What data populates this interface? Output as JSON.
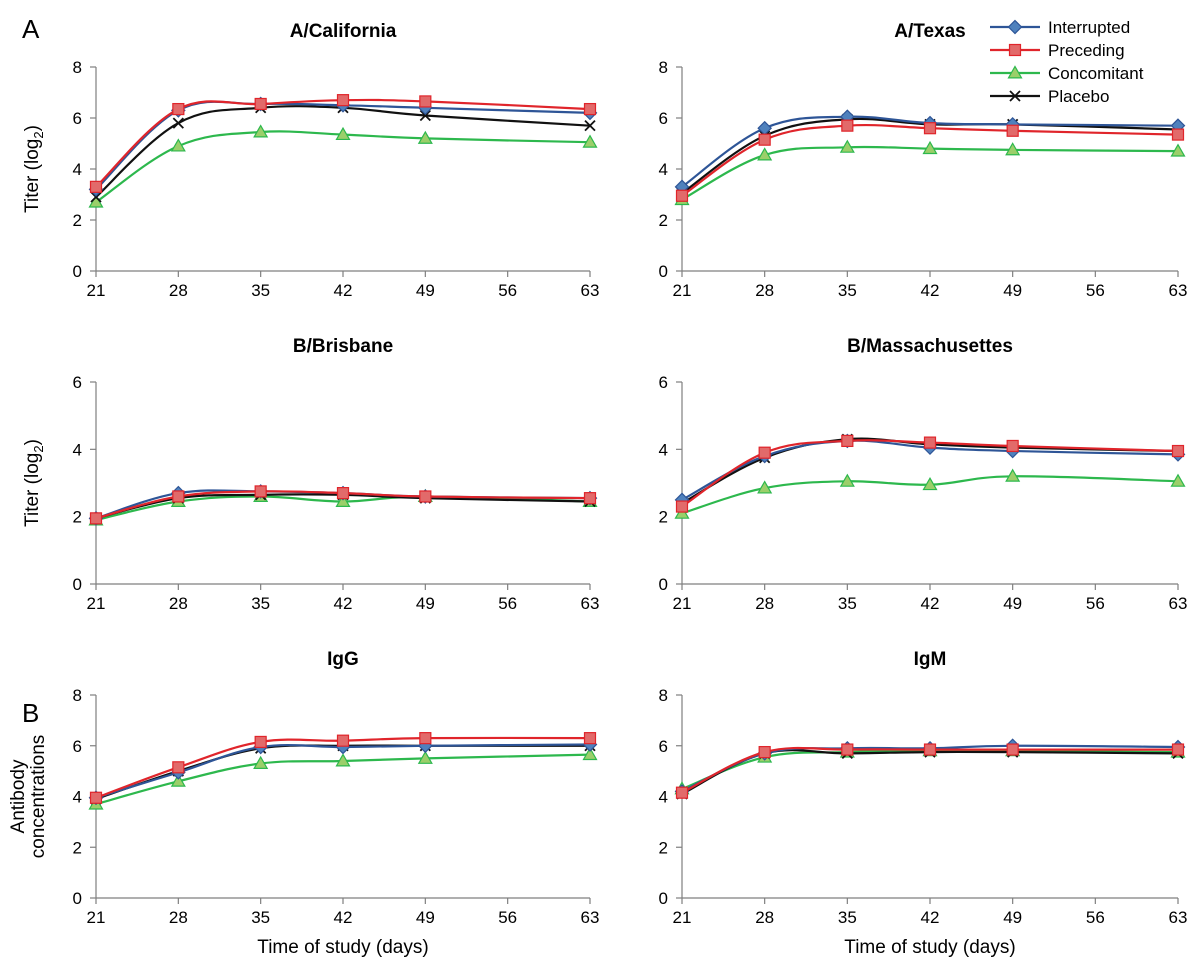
{
  "figure": {
    "panel_labels": [
      "A",
      "B"
    ],
    "legend": {
      "entries": [
        {
          "name": "Interrupted",
          "color": "#2e5597",
          "fill": "#4f81bd",
          "marker": "diamond"
        },
        {
          "name": "Preceding",
          "color": "#e0252b",
          "fill": "#e26a6a",
          "marker": "square"
        },
        {
          "name": "Concomitant",
          "color": "#2db84d",
          "fill": "#9bcf6a",
          "marker": "triangle"
        },
        {
          "name": "Placebo",
          "color": "#111111",
          "fill": "none",
          "marker": "x"
        }
      ],
      "placement": "top-right"
    }
  },
  "chart_data": [
    {
      "type": "line",
      "title": "A/California",
      "xlabel": "",
      "ylabel": "Titer (log2)",
      "xlim": [
        21,
        63
      ],
      "ylim": [
        0,
        8
      ],
      "xticks": [
        21,
        28,
        35,
        42,
        49,
        56,
        63
      ],
      "yticks": [
        0,
        2,
        4,
        6,
        8
      ],
      "x": [
        21,
        28,
        35,
        42,
        49,
        63
      ],
      "series": [
        {
          "name": "Interrupted",
          "values": [
            3.2,
            6.3,
            6.55,
            6.5,
            6.4,
            6.2
          ]
        },
        {
          "name": "Preceding",
          "values": [
            3.3,
            6.35,
            6.55,
            6.7,
            6.65,
            6.35
          ]
        },
        {
          "name": "Concomitant",
          "values": [
            2.7,
            4.9,
            5.45,
            5.35,
            5.2,
            5.05
          ]
        },
        {
          "name": "Placebo",
          "values": [
            2.9,
            5.8,
            6.4,
            6.4,
            6.1,
            5.7
          ]
        }
      ]
    },
    {
      "type": "line",
      "title": "A/Texas",
      "xlabel": "",
      "ylabel": "",
      "xlim": [
        21,
        63
      ],
      "ylim": [
        0,
        8
      ],
      "xticks": [
        21,
        28,
        35,
        42,
        49,
        56,
        63
      ],
      "yticks": [
        0,
        2,
        4,
        6,
        8
      ],
      "x": [
        21,
        28,
        35,
        42,
        49,
        63
      ],
      "series": [
        {
          "name": "Interrupted",
          "values": [
            3.3,
            5.6,
            6.05,
            5.8,
            5.75,
            5.7
          ]
        },
        {
          "name": "Preceding",
          "values": [
            2.95,
            5.15,
            5.7,
            5.6,
            5.5,
            5.35
          ]
        },
        {
          "name": "Concomitant",
          "values": [
            2.8,
            4.55,
            4.85,
            4.8,
            4.75,
            4.7
          ]
        },
        {
          "name": "Placebo",
          "values": [
            3.05,
            5.3,
            5.95,
            5.75,
            5.75,
            5.55
          ]
        }
      ]
    },
    {
      "type": "line",
      "title": "B/Brisbane",
      "xlabel": "",
      "ylabel": "Titer (log2)",
      "xlim": [
        21,
        63
      ],
      "ylim": [
        0,
        6
      ],
      "xticks": [
        21,
        28,
        35,
        42,
        49,
        56,
        63
      ],
      "yticks": [
        0,
        2,
        4,
        6
      ],
      "x": [
        21,
        28,
        35,
        42,
        49,
        63
      ],
      "series": [
        {
          "name": "Interrupted",
          "values": [
            1.95,
            2.7,
            2.75,
            2.7,
            2.6,
            2.55
          ]
        },
        {
          "name": "Preceding",
          "values": [
            1.95,
            2.6,
            2.75,
            2.7,
            2.6,
            2.55
          ]
        },
        {
          "name": "Concomitant",
          "values": [
            1.9,
            2.45,
            2.6,
            2.45,
            2.6,
            2.45
          ]
        },
        {
          "name": "Placebo",
          "values": [
            1.95,
            2.55,
            2.65,
            2.65,
            2.55,
            2.45
          ]
        }
      ]
    },
    {
      "type": "line",
      "title": "B/Massachusettes",
      "xlabel": "",
      "ylabel": "",
      "xlim": [
        21,
        63
      ],
      "ylim": [
        0,
        6
      ],
      "xticks": [
        21,
        28,
        35,
        42,
        49,
        56,
        63
      ],
      "yticks": [
        0,
        2,
        4,
        6
      ],
      "x": [
        21,
        28,
        35,
        42,
        49,
        63
      ],
      "series": [
        {
          "name": "Interrupted",
          "values": [
            2.5,
            3.8,
            4.25,
            4.05,
            3.95,
            3.85
          ]
        },
        {
          "name": "Preceding",
          "values": [
            2.3,
            3.9,
            4.25,
            4.2,
            4.1,
            3.95
          ]
        },
        {
          "name": "Concomitant",
          "values": [
            2.1,
            2.85,
            3.05,
            2.95,
            3.2,
            3.05
          ]
        },
        {
          "name": "Placebo",
          "values": [
            2.4,
            3.75,
            4.3,
            4.15,
            4.05,
            3.95
          ]
        }
      ]
    },
    {
      "type": "line",
      "title": "IgG",
      "xlabel": "Time of study (days)",
      "ylabel": "Antibody concentrations",
      "xlim": [
        21,
        63
      ],
      "ylim": [
        0,
        8
      ],
      "xticks": [
        21,
        28,
        35,
        42,
        49,
        56,
        63
      ],
      "yticks": [
        0,
        2,
        4,
        6,
        8
      ],
      "x": [
        21,
        28,
        35,
        42,
        49,
        63
      ],
      "series": [
        {
          "name": "Interrupted",
          "values": [
            3.95,
            4.95,
            5.95,
            5.95,
            6.0,
            6.05
          ]
        },
        {
          "name": "Preceding",
          "values": [
            3.95,
            5.15,
            6.15,
            6.2,
            6.3,
            6.3
          ]
        },
        {
          "name": "Concomitant",
          "values": [
            3.7,
            4.6,
            5.3,
            5.4,
            5.5,
            5.65
          ]
        },
        {
          "name": "Placebo",
          "values": [
            3.9,
            5.0,
            5.9,
            6.0,
            6.0,
            6.0
          ]
        }
      ]
    },
    {
      "type": "line",
      "title": "IgM",
      "xlabel": "Time of study (days)",
      "ylabel": "",
      "xlim": [
        21,
        63
      ],
      "ylim": [
        0,
        8
      ],
      "xticks": [
        21,
        28,
        35,
        42,
        49,
        56,
        63
      ],
      "yticks": [
        0,
        2,
        4,
        6,
        8
      ],
      "x": [
        21,
        28,
        35,
        42,
        49,
        63
      ],
      "series": [
        {
          "name": "Interrupted",
          "values": [
            4.2,
            5.7,
            5.9,
            5.9,
            6.0,
            5.95
          ]
        },
        {
          "name": "Preceding",
          "values": [
            4.15,
            5.75,
            5.85,
            5.85,
            5.85,
            5.85
          ]
        },
        {
          "name": "Concomitant",
          "values": [
            4.3,
            5.55,
            5.75,
            5.8,
            5.8,
            5.75
          ]
        },
        {
          "name": "Placebo",
          "values": [
            4.1,
            5.7,
            5.7,
            5.75,
            5.75,
            5.7
          ]
        }
      ]
    }
  ]
}
